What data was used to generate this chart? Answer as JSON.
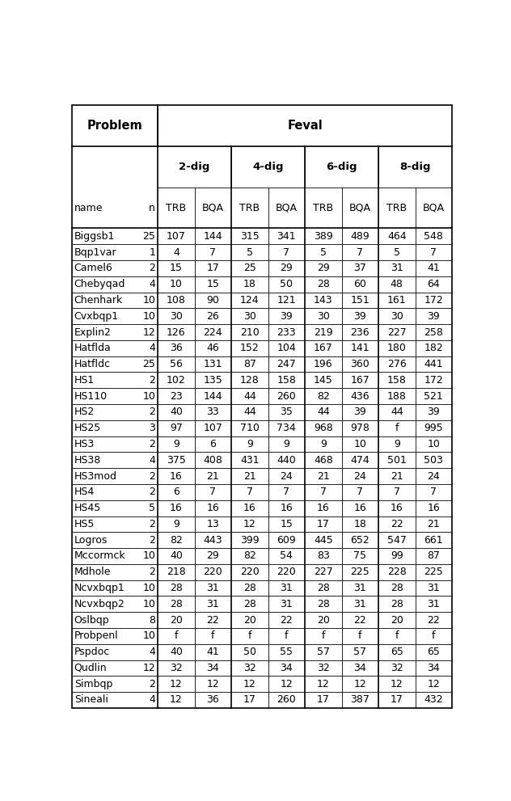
{
  "rows": [
    [
      "Biggsb1",
      "25",
      "107",
      "144",
      "315",
      "341",
      "389",
      "489",
      "464",
      "548"
    ],
    [
      "Bqp1var",
      "1",
      "4",
      "7",
      "5",
      "7",
      "5",
      "7",
      "5",
      "7"
    ],
    [
      "Camel6",
      "2",
      "15",
      "17",
      "25",
      "29",
      "29",
      "37",
      "31",
      "41"
    ],
    [
      "Chebyqad",
      "4",
      "10",
      "15",
      "18",
      "50",
      "28",
      "60",
      "48",
      "64"
    ],
    [
      "Chenhark",
      "10",
      "108",
      "90",
      "124",
      "121",
      "143",
      "151",
      "161",
      "172"
    ],
    [
      "Cvxbqp1",
      "10",
      "30",
      "26",
      "30",
      "39",
      "30",
      "39",
      "30",
      "39"
    ],
    [
      "Explin2",
      "12",
      "126",
      "224",
      "210",
      "233",
      "219",
      "236",
      "227",
      "258"
    ],
    [
      "Hatflda",
      "4",
      "36",
      "46",
      "152",
      "104",
      "167",
      "141",
      "180",
      "182"
    ],
    [
      "Hatfldc",
      "25",
      "56",
      "131",
      "87",
      "247",
      "196",
      "360",
      "276",
      "441"
    ],
    [
      "HS1",
      "2",
      "102",
      "135",
      "128",
      "158",
      "145",
      "167",
      "158",
      "172"
    ],
    [
      "HS110",
      "10",
      "23",
      "144",
      "44",
      "260",
      "82",
      "436",
      "188",
      "521"
    ],
    [
      "HS2",
      "2",
      "40",
      "33",
      "44",
      "35",
      "44",
      "39",
      "44",
      "39"
    ],
    [
      "HS25",
      "3",
      "97",
      "107",
      "710",
      "734",
      "968",
      "978",
      "f",
      "995"
    ],
    [
      "HS3",
      "2",
      "9",
      "6",
      "9",
      "9",
      "9",
      "10",
      "9",
      "10"
    ],
    [
      "HS38",
      "4",
      "375",
      "408",
      "431",
      "440",
      "468",
      "474",
      "501",
      "503"
    ],
    [
      "HS3mod",
      "2",
      "16",
      "21",
      "21",
      "24",
      "21",
      "24",
      "21",
      "24"
    ],
    [
      "HS4",
      "2",
      "6",
      "7",
      "7",
      "7",
      "7",
      "7",
      "7",
      "7"
    ],
    [
      "HS45",
      "5",
      "16",
      "16",
      "16",
      "16",
      "16",
      "16",
      "16",
      "16"
    ],
    [
      "HS5",
      "2",
      "9",
      "13",
      "12",
      "15",
      "17",
      "18",
      "22",
      "21"
    ],
    [
      "Logros",
      "2",
      "82",
      "443",
      "399",
      "609",
      "445",
      "652",
      "547",
      "661"
    ],
    [
      "Mccormck",
      "10",
      "40",
      "29",
      "82",
      "54",
      "83",
      "75",
      "99",
      "87"
    ],
    [
      "Mdhole",
      "2",
      "218",
      "220",
      "220",
      "220",
      "227",
      "225",
      "228",
      "225"
    ],
    [
      "Ncvxbqp1",
      "10",
      "28",
      "31",
      "28",
      "31",
      "28",
      "31",
      "28",
      "31"
    ],
    [
      "Ncvxbqp2",
      "10",
      "28",
      "31",
      "28",
      "31",
      "28",
      "31",
      "28",
      "31"
    ],
    [
      "Oslbqp",
      "8",
      "20",
      "22",
      "20",
      "22",
      "20",
      "22",
      "20",
      "22"
    ],
    [
      "Probpenl",
      "10",
      "f",
      "f",
      "f",
      "f",
      "f",
      "f",
      "f",
      "f"
    ],
    [
      "Pspdoc",
      "4",
      "40",
      "41",
      "50",
      "55",
      "57",
      "57",
      "65",
      "65"
    ],
    [
      "Qudlin",
      "12",
      "32",
      "34",
      "32",
      "34",
      "32",
      "34",
      "32",
      "34"
    ],
    [
      "Simbqp",
      "2",
      "12",
      "12",
      "12",
      "12",
      "12",
      "12",
      "12",
      "12"
    ],
    [
      "Sineali",
      "4",
      "12",
      "36",
      "17",
      "260",
      "17",
      "387",
      "17",
      "432"
    ]
  ],
  "bg_color": "#ffffff",
  "font_size": 9.0,
  "header_font_size": 9.5,
  "bold_font_size": 10.5
}
